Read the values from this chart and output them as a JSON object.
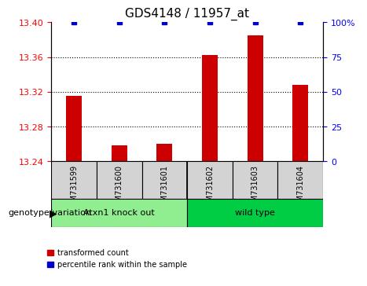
{
  "title": "GDS4148 / 11957_at",
  "samples": [
    "GSM731599",
    "GSM731600",
    "GSM731601",
    "GSM731602",
    "GSM731603",
    "GSM731604"
  ],
  "red_values": [
    13.315,
    13.258,
    13.26,
    13.362,
    13.385,
    13.328
  ],
  "blue_values": [
    100,
    100,
    100,
    100,
    100,
    100
  ],
  "ylim_left": [
    13.24,
    13.4
  ],
  "ylim_right": [
    0,
    100
  ],
  "yticks_left": [
    13.24,
    13.28,
    13.32,
    13.36,
    13.4
  ],
  "yticks_right": [
    0,
    25,
    50,
    75,
    100
  ],
  "grid_lines": [
    13.28,
    13.32,
    13.36
  ],
  "group1_label": "Atxn1 knock out",
  "group2_label": "wild type",
  "group1_color": "#90ee90",
  "group2_color": "#00cc44",
  "bar_color": "#cc0000",
  "blue_marker_color": "#0000cc",
  "bg_color": "#d3d3d3",
  "legend_red_label": "transformed count",
  "legend_blue_label": "percentile rank within the sample",
  "genotype_label": "genotype/variation"
}
